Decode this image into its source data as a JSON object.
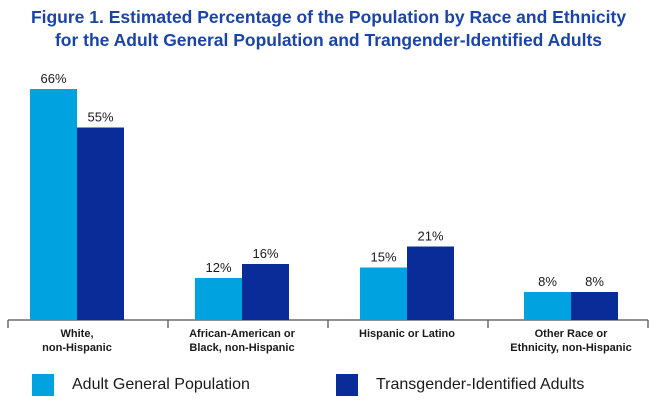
{
  "chart_data": {
    "type": "bar",
    "title": "Figure 1. Estimated Percentage of the Population by Race and Ethnicity for the Adult General Population and Trangender-Identified Adults",
    "title_lines": [
      "Figure 1. Estimated Percentage of the Population by Race and Ethnicity",
      "for the Adult General Population and Trangender-Identified Adults"
    ],
    "categories": [
      [
        "White,",
        "non-Hispanic"
      ],
      [
        "African-American or",
        "Black, non-Hispanic"
      ],
      [
        "Hispanic or Latino"
      ],
      [
        "Other Race or",
        "Ethnicity, non-Hispanic"
      ]
    ],
    "series": [
      {
        "name": "Adult General Population",
        "color": "#00a3e0",
        "values": [
          66,
          12,
          15,
          8
        ]
      },
      {
        "name": "Transgender-Identified Adults",
        "color": "#0a2c99",
        "values": [
          55,
          16,
          21,
          8
        ]
      }
    ],
    "value_suffix": "%",
    "ylim": [
      0,
      66
    ],
    "grid": false,
    "legend_position": "bottom"
  }
}
